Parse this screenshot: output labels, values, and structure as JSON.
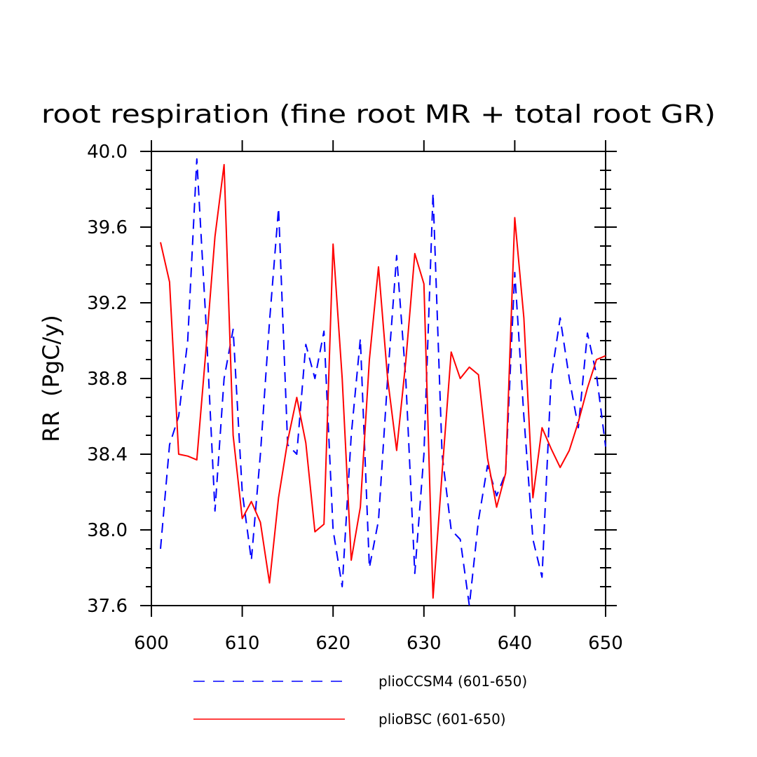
{
  "chart_data": {
    "type": "line",
    "title": "root respiration (fine root MR + total root GR)",
    "ylabel": "RR  (PgC/y)",
    "xlabel": "",
    "xlim": [
      600,
      650
    ],
    "ylim": [
      37.6,
      40.0
    ],
    "xticks": [
      600,
      610,
      620,
      630,
      640,
      650
    ],
    "xtick_labels": [
      "600",
      "610",
      "620",
      "630",
      "640",
      "650"
    ],
    "yticks": [
      37.6,
      38.0,
      38.4,
      38.8,
      39.2,
      39.6,
      40.0
    ],
    "ytick_labels": [
      "37.6",
      "38.0",
      "38.4",
      "38.8",
      "39.2",
      "39.6",
      "40.0"
    ],
    "legend_position": "bottom",
    "x": [
      601,
      602,
      603,
      604,
      605,
      606,
      607,
      608,
      609,
      610,
      611,
      612,
      613,
      614,
      615,
      616,
      617,
      618,
      619,
      620,
      621,
      622,
      623,
      624,
      625,
      626,
      627,
      628,
      629,
      630,
      631,
      632,
      633,
      634,
      635,
      636,
      637,
      638,
      639,
      640,
      641,
      642,
      643,
      644,
      645,
      646,
      647,
      648,
      649,
      650
    ],
    "series": [
      {
        "name": "plioCCSM4 (601-650)",
        "color": "#0000ff",
        "dash": "dashed",
        "values": [
          37.9,
          38.45,
          38.6,
          39.0,
          39.96,
          39.1,
          38.1,
          38.8,
          39.06,
          38.2,
          37.84,
          38.4,
          39.1,
          39.7,
          38.45,
          38.4,
          38.98,
          38.8,
          39.05,
          38.0,
          37.7,
          38.5,
          39.01,
          37.8,
          38.05,
          38.8,
          39.45,
          38.8,
          37.77,
          38.4,
          39.78,
          38.4,
          38.0,
          37.95,
          37.6,
          38.05,
          38.34,
          38.18,
          38.3,
          39.36,
          38.6,
          37.95,
          37.75,
          38.8,
          39.12,
          38.8,
          38.54,
          39.04,
          38.82,
          38.44
        ]
      },
      {
        "name": "plioBSC (601-650)",
        "color": "#ff0000",
        "dash": "solid",
        "values": [
          39.52,
          39.31,
          38.4,
          38.39,
          38.37,
          38.95,
          39.55,
          39.93,
          38.5,
          38.06,
          38.15,
          38.04,
          37.72,
          38.17,
          38.47,
          38.7,
          38.46,
          37.99,
          38.03,
          39.51,
          38.8,
          37.84,
          38.12,
          38.9,
          39.39,
          38.8,
          38.42,
          38.89,
          39.46,
          39.3,
          37.64,
          38.3,
          38.94,
          38.8,
          38.86,
          38.82,
          38.38,
          38.12,
          38.3,
          39.65,
          39.12,
          38.17,
          38.54,
          38.43,
          38.33,
          38.42,
          38.57,
          38.75,
          38.9,
          38.92
        ]
      }
    ]
  }
}
